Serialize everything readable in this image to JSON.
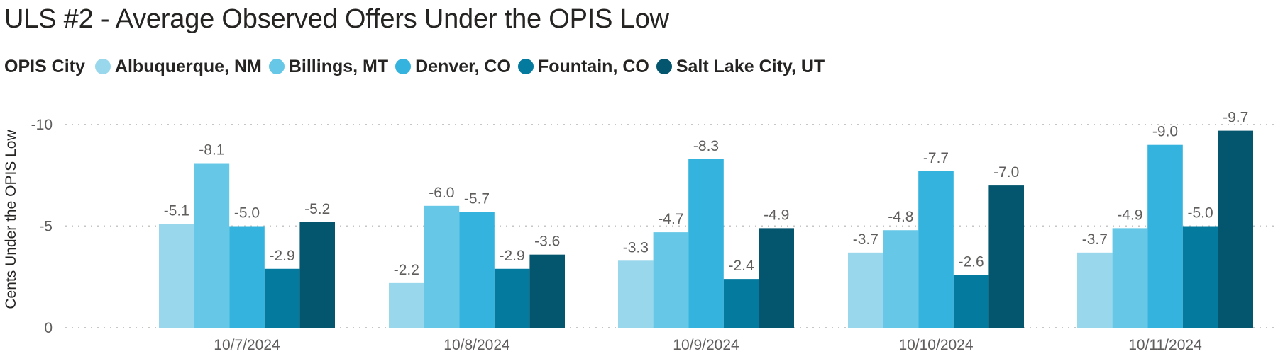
{
  "title": "ULS #2 - Average Observed Offers Under the OPIS Low",
  "legend_title": "OPIS City",
  "chart_data": {
    "type": "bar",
    "title": "ULS #2 - Average Observed Offers Under the OPIS Low",
    "ylabel": "Cents Under the OPIS Low",
    "xlabel": "",
    "ylim": [
      0,
      -10
    ],
    "y_ticks": [
      {
        "value": -10,
        "label": "-10"
      },
      {
        "value": -5,
        "label": "-5"
      },
      {
        "value": 0,
        "label": "0"
      }
    ],
    "grid": true,
    "legend_position": "top-left",
    "categories": [
      "10/7/2024",
      "10/8/2024",
      "10/9/2024",
      "10/10/2024",
      "10/11/2024"
    ],
    "series": [
      {
        "name": "Albuquerque, NM",
        "color": "#99D7ED",
        "values": [
          -5.1,
          -2.2,
          -3.3,
          -3.7,
          -3.7
        ]
      },
      {
        "name": "Billings, MT",
        "color": "#66C8E6",
        "values": [
          -8.1,
          -6.0,
          -4.7,
          -4.8,
          -4.9
        ]
      },
      {
        "name": "Denver, CO",
        "color": "#33B3DD",
        "values": [
          -5.0,
          -5.7,
          -8.3,
          -7.7,
          -9.0
        ]
      },
      {
        "name": "Fountain, CO",
        "color": "#047A9F",
        "values": [
          -2.9,
          -2.9,
          -2.4,
          -2.6,
          -5.0
        ]
      },
      {
        "name": "Salt Lake City, UT",
        "color": "#03566E",
        "values": [
          -5.2,
          -3.6,
          -4.9,
          -7.0,
          -9.7
        ]
      }
    ]
  }
}
